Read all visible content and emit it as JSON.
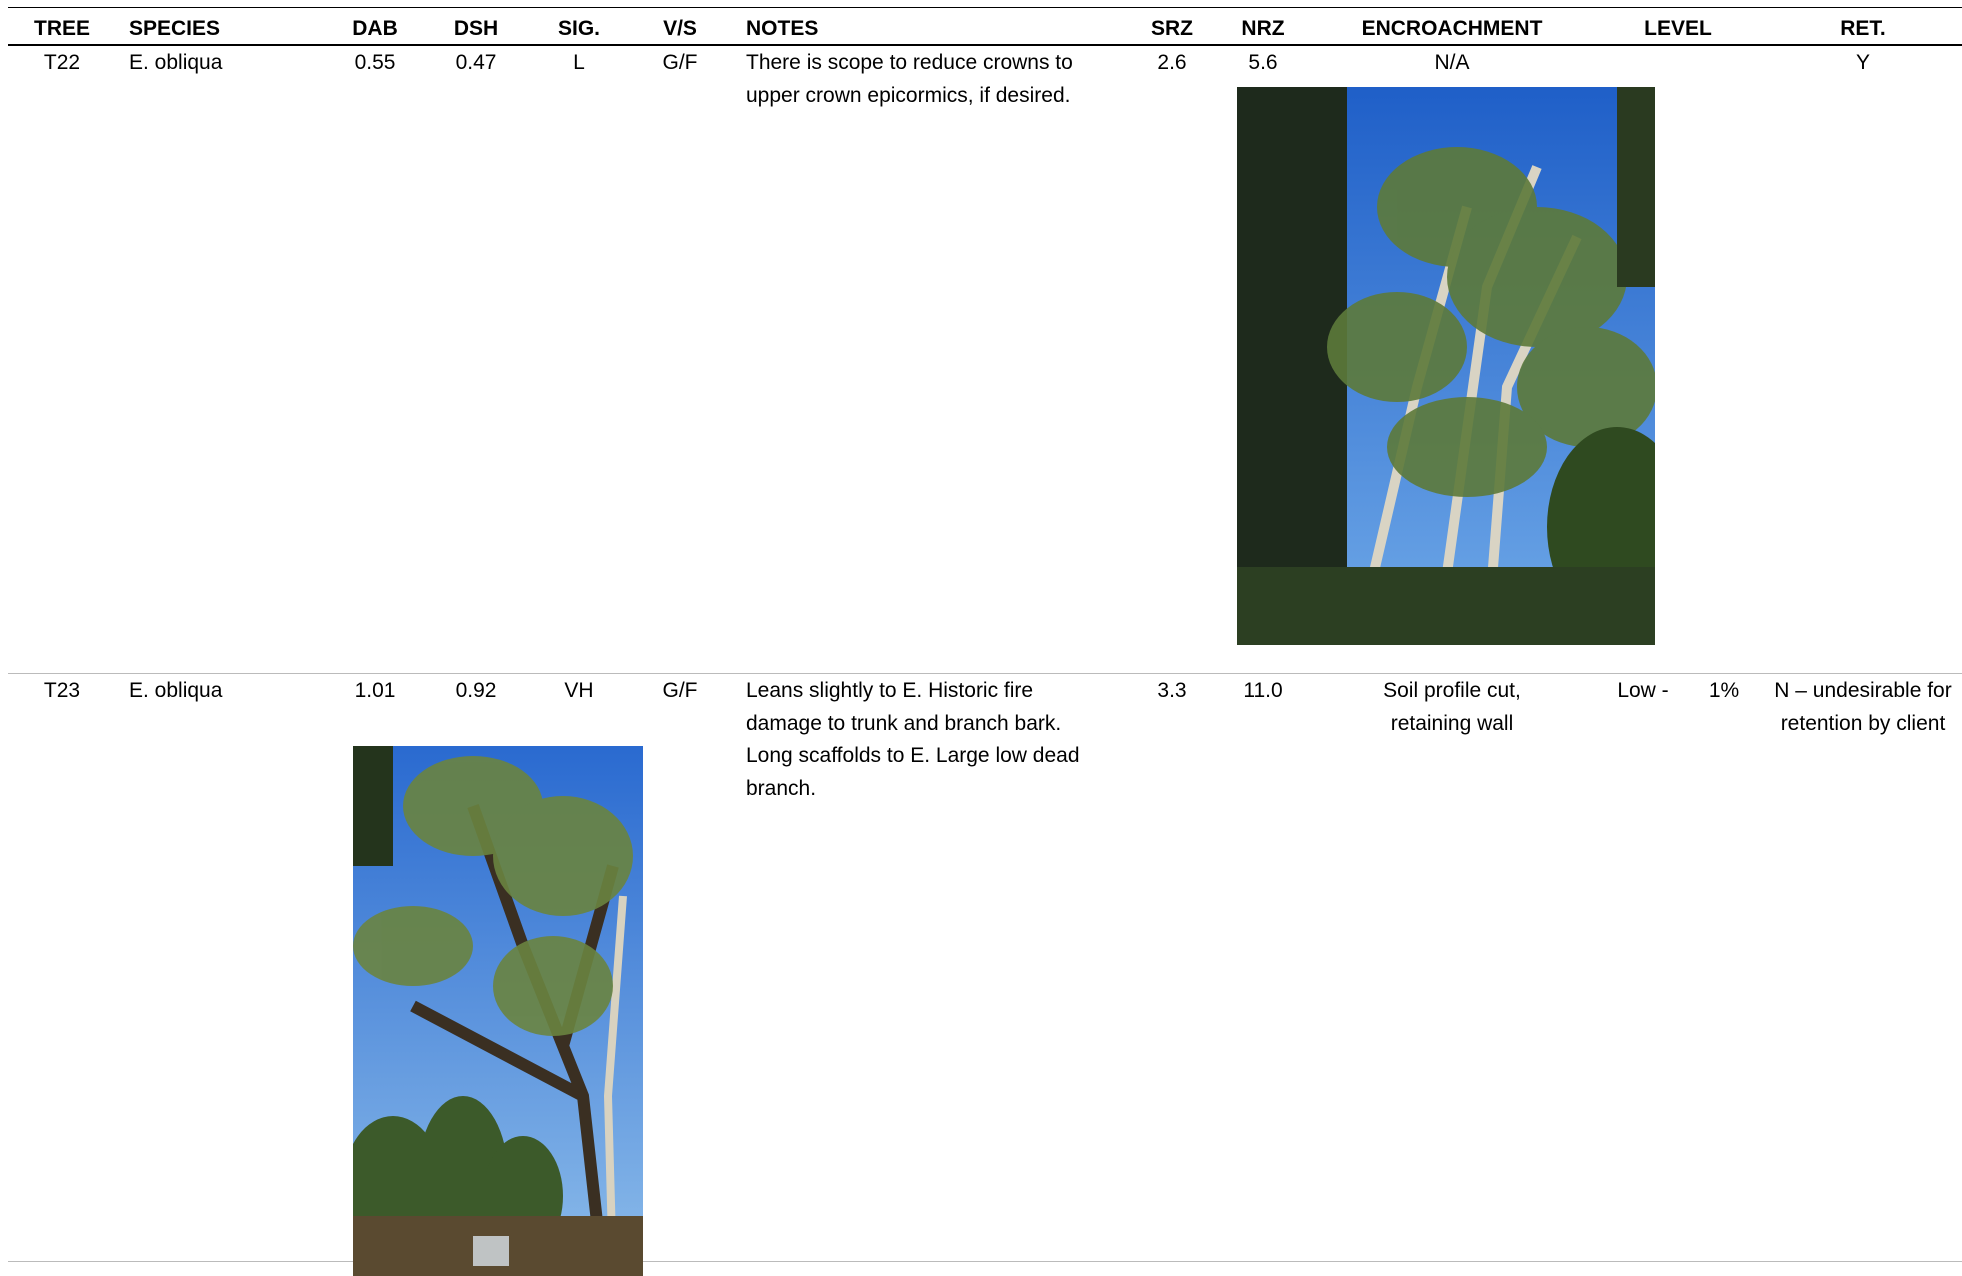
{
  "table": {
    "header": [
      "TREE",
      "SPECIES",
      "DAB",
      "DSH",
      "SIG.",
      "V/S",
      "NOTES",
      "SRZ",
      "NRZ",
      "ENCROACHMENT",
      "LEVEL",
      "RET."
    ],
    "rows": [
      {
        "tree": "T22",
        "species": "E. obliqua",
        "dab": "0.55",
        "dsh": "0.47",
        "sig": "L",
        "vs": "G/F",
        "notes": "There is scope to reduce crowns to upper crown epicormics, if desired.",
        "srz": "2.6",
        "nrz": "5.6",
        "encroachment": "N/A",
        "ret": "Y"
      },
      {
        "tree": "T23",
        "species": "E. obliqua",
        "dab": "1.01",
        "dsh": "0.92",
        "sig": "VH",
        "vs": "G/F",
        "notes": "Leans slightly to E. Historic fire damage to trunk and branch bark. Long scaffolds to E. Large low dead branch.",
        "srz": "3.3",
        "nrz": "11.0",
        "encroachment": "Soil profile cut, retaining wall",
        "level": "Low -",
        "level_pct": "1%",
        "ret": "N – undesirable for retention by client"
      }
    ]
  }
}
